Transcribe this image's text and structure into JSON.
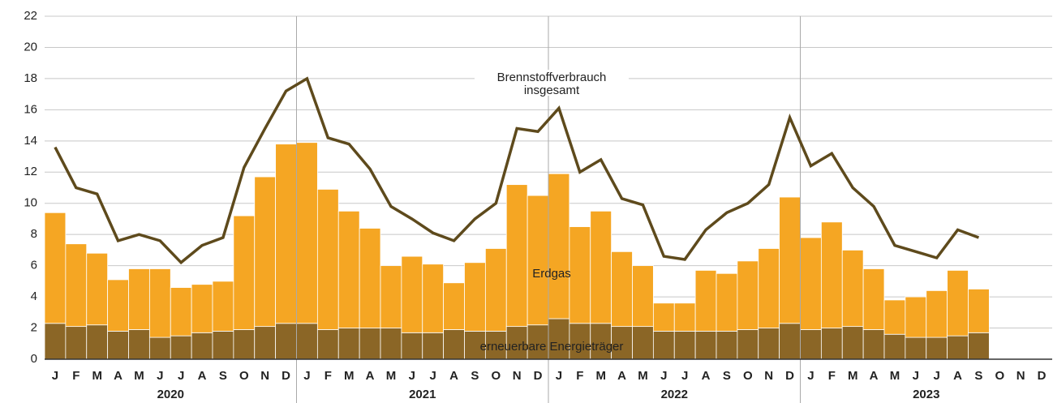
{
  "chart_data": {
    "type": "bar",
    "categories": [
      "J",
      "F",
      "M",
      "A",
      "M",
      "J",
      "J",
      "A",
      "S",
      "O",
      "N",
      "D",
      "J",
      "F",
      "M",
      "A",
      "M",
      "J",
      "J",
      "A",
      "S",
      "O",
      "N",
      "D",
      "J",
      "F",
      "M",
      "A",
      "M",
      "J",
      "J",
      "A",
      "S",
      "O",
      "N",
      "D",
      "J",
      "F",
      "M",
      "A",
      "M",
      "J",
      "J",
      "A",
      "S",
      "O",
      "N",
      "D"
    ],
    "years": [
      "2020",
      "2021",
      "2022",
      "2023"
    ],
    "stacked": true,
    "series": [
      {
        "name": "erneuerbare Energieträger",
        "color": "#8b6626",
        "values": [
          2.3,
          2.1,
          2.2,
          1.8,
          1.9,
          1.4,
          1.5,
          1.7,
          1.8,
          1.9,
          2.1,
          2.3,
          2.3,
          1.9,
          2.0,
          2.0,
          2.0,
          1.7,
          1.7,
          1.9,
          1.8,
          1.8,
          2.1,
          2.2,
          2.6,
          2.3,
          2.3,
          2.1,
          2.1,
          1.8,
          1.8,
          1.8,
          1.8,
          1.9,
          2.0,
          2.3,
          1.9,
          2.0,
          2.1,
          1.9,
          1.6,
          1.4,
          1.4,
          1.5,
          1.7,
          null,
          null,
          null
        ]
      },
      {
        "name": "Erdgas",
        "color": "#f5a623",
        "values": [
          7.1,
          5.3,
          4.6,
          3.3,
          3.9,
          4.4,
          3.1,
          3.1,
          3.2,
          7.3,
          9.6,
          11.5,
          11.6,
          9.0,
          7.5,
          6.4,
          4.0,
          4.9,
          4.4,
          3.0,
          4.4,
          5.3,
          9.1,
          8.3,
          9.3,
          6.2,
          7.2,
          4.8,
          3.9,
          1.8,
          1.8,
          3.9,
          3.7,
          4.4,
          5.1,
          8.1,
          5.9,
          6.8,
          4.9,
          3.9,
          2.2,
          2.6,
          3.0,
          4.2,
          2.8,
          null,
          null,
          null
        ]
      },
      {
        "name": "Brennstoffverbrauch insgesamt",
        "color": "#5e4a1c",
        "type": "line",
        "values": [
          13.6,
          11.0,
          10.6,
          7.6,
          8.0,
          7.6,
          6.2,
          7.3,
          7.8,
          12.3,
          14.8,
          17.2,
          18.0,
          14.2,
          13.8,
          12.2,
          9.8,
          9.0,
          8.1,
          7.6,
          9.0,
          10.0,
          14.8,
          14.6,
          16.1,
          12.0,
          12.8,
          10.3,
          9.9,
          6.6,
          6.4,
          8.3,
          9.4,
          10.0,
          11.2,
          15.5,
          12.4,
          13.2,
          11.0,
          9.8,
          7.3,
          6.9,
          6.5,
          8.3,
          7.8,
          null,
          null,
          null
        ]
      }
    ],
    "ylim": [
      0,
      22
    ],
    "yticks": [
      0,
      2,
      4,
      6,
      8,
      10,
      12,
      14,
      16,
      18,
      20,
      22
    ],
    "grid": true
  }
}
